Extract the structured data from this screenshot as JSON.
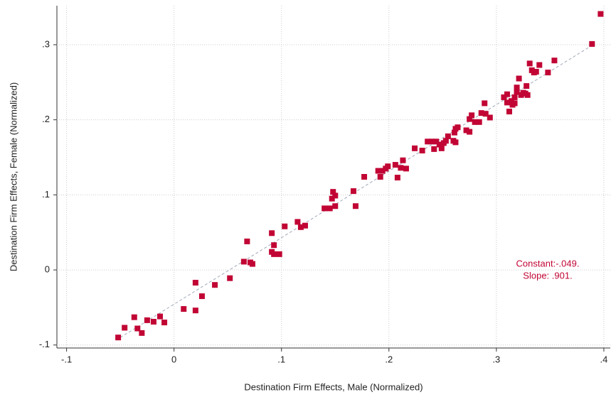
{
  "chart_data": {
    "type": "scatter",
    "x_label": "Destination Firm Effects, Male  (Normalized)",
    "y_label": "Destination Firm Effects, Female (Normalized)",
    "annotations": [
      "Constant:-.049.",
      "Slope: .901."
    ],
    "annotation_color": "#c10534",
    "color": "#c10534",
    "grid": true,
    "xlim": [
      -0.109,
      0.406
    ],
    "ylim": [
      -0.104,
      0.352
    ],
    "xticks": [
      {
        "value": -0.1,
        "label": "-.1"
      },
      0,
      {
        "value": 0.1,
        "label": ".1"
      },
      {
        "value": 0.2,
        "label": ".2"
      },
      {
        "value": 0.3,
        "label": ".3"
      },
      {
        "value": 0.4,
        "label": ".4"
      }
    ],
    "yticks": [
      {
        "value": -0.1,
        "label": "-.1"
      },
      0,
      {
        "value": 0.1,
        "label": ".1"
      },
      {
        "value": 0.2,
        "label": ".2"
      },
      {
        "value": 0.3,
        "label": ".3"
      }
    ],
    "fit_line": {
      "x": [
        -0.05,
        0.39
      ],
      "values": [
        -0.09,
        0.3
      ],
      "color": "#a0a8b8"
    },
    "x": [
      -0.052,
      -0.046,
      -0.037,
      -0.034,
      -0.03,
      -0.025,
      -0.019,
      -0.013,
      -0.009,
      0.009,
      0.02,
      0.02,
      0.026,
      0.038,
      0.052,
      0.065,
      0.068,
      0.071,
      0.073,
      0.091,
      0.091,
      0.093,
      0.093,
      0.098,
      0.103,
      0.115,
      0.118,
      0.122,
      0.14,
      0.145,
      0.148,
      0.147,
      0.15,
      0.15,
      0.167,
      0.169,
      0.177,
      0.19,
      0.192,
      0.194,
      0.197,
      0.199,
      0.206,
      0.208,
      0.211,
      0.213,
      0.216,
      0.224,
      0.231,
      0.236,
      0.24,
      0.242,
      0.244,
      0.247,
      0.249,
      0.251,
      0.253,
      0.255,
      0.26,
      0.261,
      0.262,
      0.264,
      0.262,
      0.272,
      0.275,
      0.275,
      0.277,
      0.28,
      0.284,
      0.286,
      0.289,
      0.29,
      0.294,
      0.307,
      0.31,
      0.31,
      0.312,
      0.314,
      0.315,
      0.317,
      0.317,
      0.319,
      0.319,
      0.321,
      0.323,
      0.325,
      0.327,
      0.328,
      0.329,
      0.331,
      0.333,
      0.335,
      0.337,
      0.34,
      0.348,
      0.354,
      0.389,
      0.397
    ],
    "values": [
      -0.09,
      -0.077,
      -0.063,
      -0.078,
      -0.084,
      -0.067,
      -0.069,
      -0.062,
      -0.07,
      -0.052,
      -0.017,
      -0.054,
      -0.035,
      -0.02,
      -0.011,
      0.011,
      0.038,
      0.01,
      0.008,
      0.049,
      0.024,
      0.033,
      0.021,
      0.021,
      0.058,
      0.064,
      0.057,
      0.059,
      0.082,
      0.082,
      0.104,
      0.095,
      0.099,
      0.085,
      0.105,
      0.085,
      0.124,
      0.132,
      0.124,
      0.132,
      0.135,
      0.138,
      0.14,
      0.123,
      0.136,
      0.146,
      0.135,
      0.162,
      0.159,
      0.171,
      0.171,
      0.161,
      0.171,
      0.167,
      0.162,
      0.169,
      0.172,
      0.178,
      0.172,
      0.183,
      0.188,
      0.19,
      0.17,
      0.186,
      0.184,
      0.201,
      0.206,
      0.197,
      0.197,
      0.209,
      0.222,
      0.208,
      0.203,
      0.23,
      0.234,
      0.223,
      0.211,
      0.225,
      0.22,
      0.222,
      0.23,
      0.243,
      0.237,
      0.255,
      0.233,
      0.236,
      0.235,
      0.245,
      0.233,
      0.275,
      0.266,
      0.263,
      0.264,
      0.273,
      0.263,
      0.279,
      0.301,
      0.341
    ]
  }
}
